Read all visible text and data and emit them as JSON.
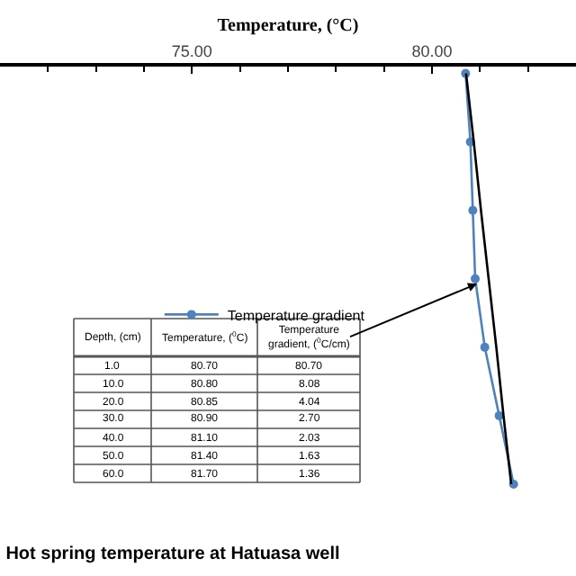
{
  "chart_data": [
    {
      "type": "line",
      "title": "Hot spring temperature at Hatuasa well",
      "xlabel": "Temperature, (°C)",
      "orientation": "horizontal",
      "categories": [
        null,
        null,
        null,
        null,
        null,
        null,
        null
      ],
      "series": [
        {
          "name": "Temperature gradient",
          "color": "#4f81bd",
          "values": [
            80.7,
            80.8,
            80.85,
            80.9,
            81.1,
            81.4,
            81.7
          ],
          "marker": "circle"
        },
        {
          "type": "line",
          "color": "#000000",
          "values": [
            80.71,
            80.87,
            81.02,
            81.18,
            81.34,
            81.49,
            81.65
          ],
          "marker": "none"
        }
      ],
      "xlim": [
        71,
        83
      ],
      "xticks": [
        {
          "value": 75,
          "label": "75.00"
        },
        {
          "value": 80,
          "label": "80.00"
        }
      ],
      "legend": "center",
      "line_style": "solid"
    },
    {
      "type": "other",
      "categories": [
        "Depth, (cm)",
        "Temperature, ($^{0}$C)",
        "Temperature gradient, ($^{0}$C/cm)"
      ],
      "cell_labels": [
        [
          "1.0",
          "80.70",
          "80.70"
        ],
        [
          "10.0",
          "80.80",
          "8.08"
        ],
        [
          "20.0",
          "80.85",
          "4.04"
        ],
        [
          "30.0",
          "80.90",
          "2.70"
        ],
        [
          "40.0",
          "81.10",
          "2.03"
        ],
        [
          "50.0",
          "81.40",
          "1.63"
        ],
        [
          "60.0",
          "81.70",
          "1.36"
        ]
      ]
    }
  ]
}
